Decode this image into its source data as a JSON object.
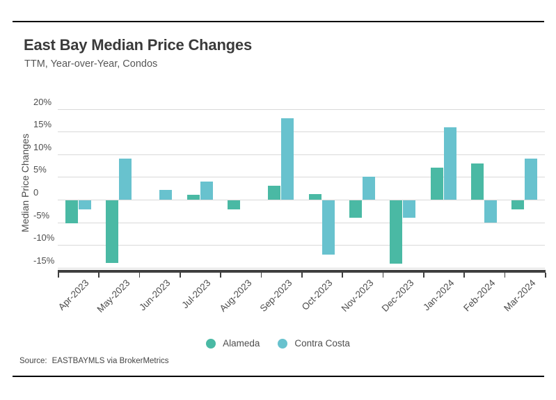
{
  "header": {
    "title": "East Bay Median Price Changes",
    "subtitle": "TTM, Year-over-Year, Condos"
  },
  "legend": [
    {
      "name": "Alameda",
      "color": "#4ab9a4"
    },
    {
      "name": "Contra Costa",
      "color": "#68c2ce"
    }
  ],
  "footer": {
    "source_label": "Source:",
    "source_value": "EASTBAYMLS via BrokerMetrics"
  },
  "chart_data": {
    "type": "bar",
    "title": "East Bay Median Price Changes",
    "subtitle": "TTM, Year-over-Year, Condos",
    "ylabel": "Median Price Changes",
    "xlabel": "",
    "categories": [
      "Apr-2023",
      "May-2023",
      "Jun-2023",
      "Jul-2023",
      "Aug-2023",
      "Sep-2023",
      "Oct-2023",
      "Nov-2023",
      "Dec-2023",
      "Jan-2024",
      "Feb-2024",
      "Mar-2024"
    ],
    "series": [
      {
        "name": "Alameda",
        "color": "#4ab9a4",
        "values": [
          -5.0,
          -13.8,
          0,
          1.1,
          -2.0,
          3.1,
          1.2,
          -3.9,
          -13.9,
          7.0,
          8.0,
          -2.0
        ]
      },
      {
        "name": "Contra Costa",
        "color": "#68c2ce",
        "values": [
          -2.0,
          9.0,
          2.1,
          4.0,
          0,
          17.9,
          -11.9,
          5.0,
          -3.9,
          16.0,
          -4.9,
          9.0
        ]
      }
    ],
    "ylim": [
      -15,
      20
    ],
    "yticks": [
      {
        "value": 20,
        "label": "20%"
      },
      {
        "value": 15,
        "label": "15%"
      },
      {
        "value": 10,
        "label": "10%"
      },
      {
        "value": 5,
        "label": "5%"
      },
      {
        "value": 0,
        "label": "0"
      },
      {
        "value": -5,
        "label": "-5%"
      },
      {
        "value": -10,
        "label": "-10%"
      },
      {
        "value": -15,
        "label": "-15%"
      }
    ],
    "grid": "horizontal",
    "grid_color": "#d9d9d9",
    "axis_color": "#3f3f3f",
    "legend_position": "bottom"
  }
}
